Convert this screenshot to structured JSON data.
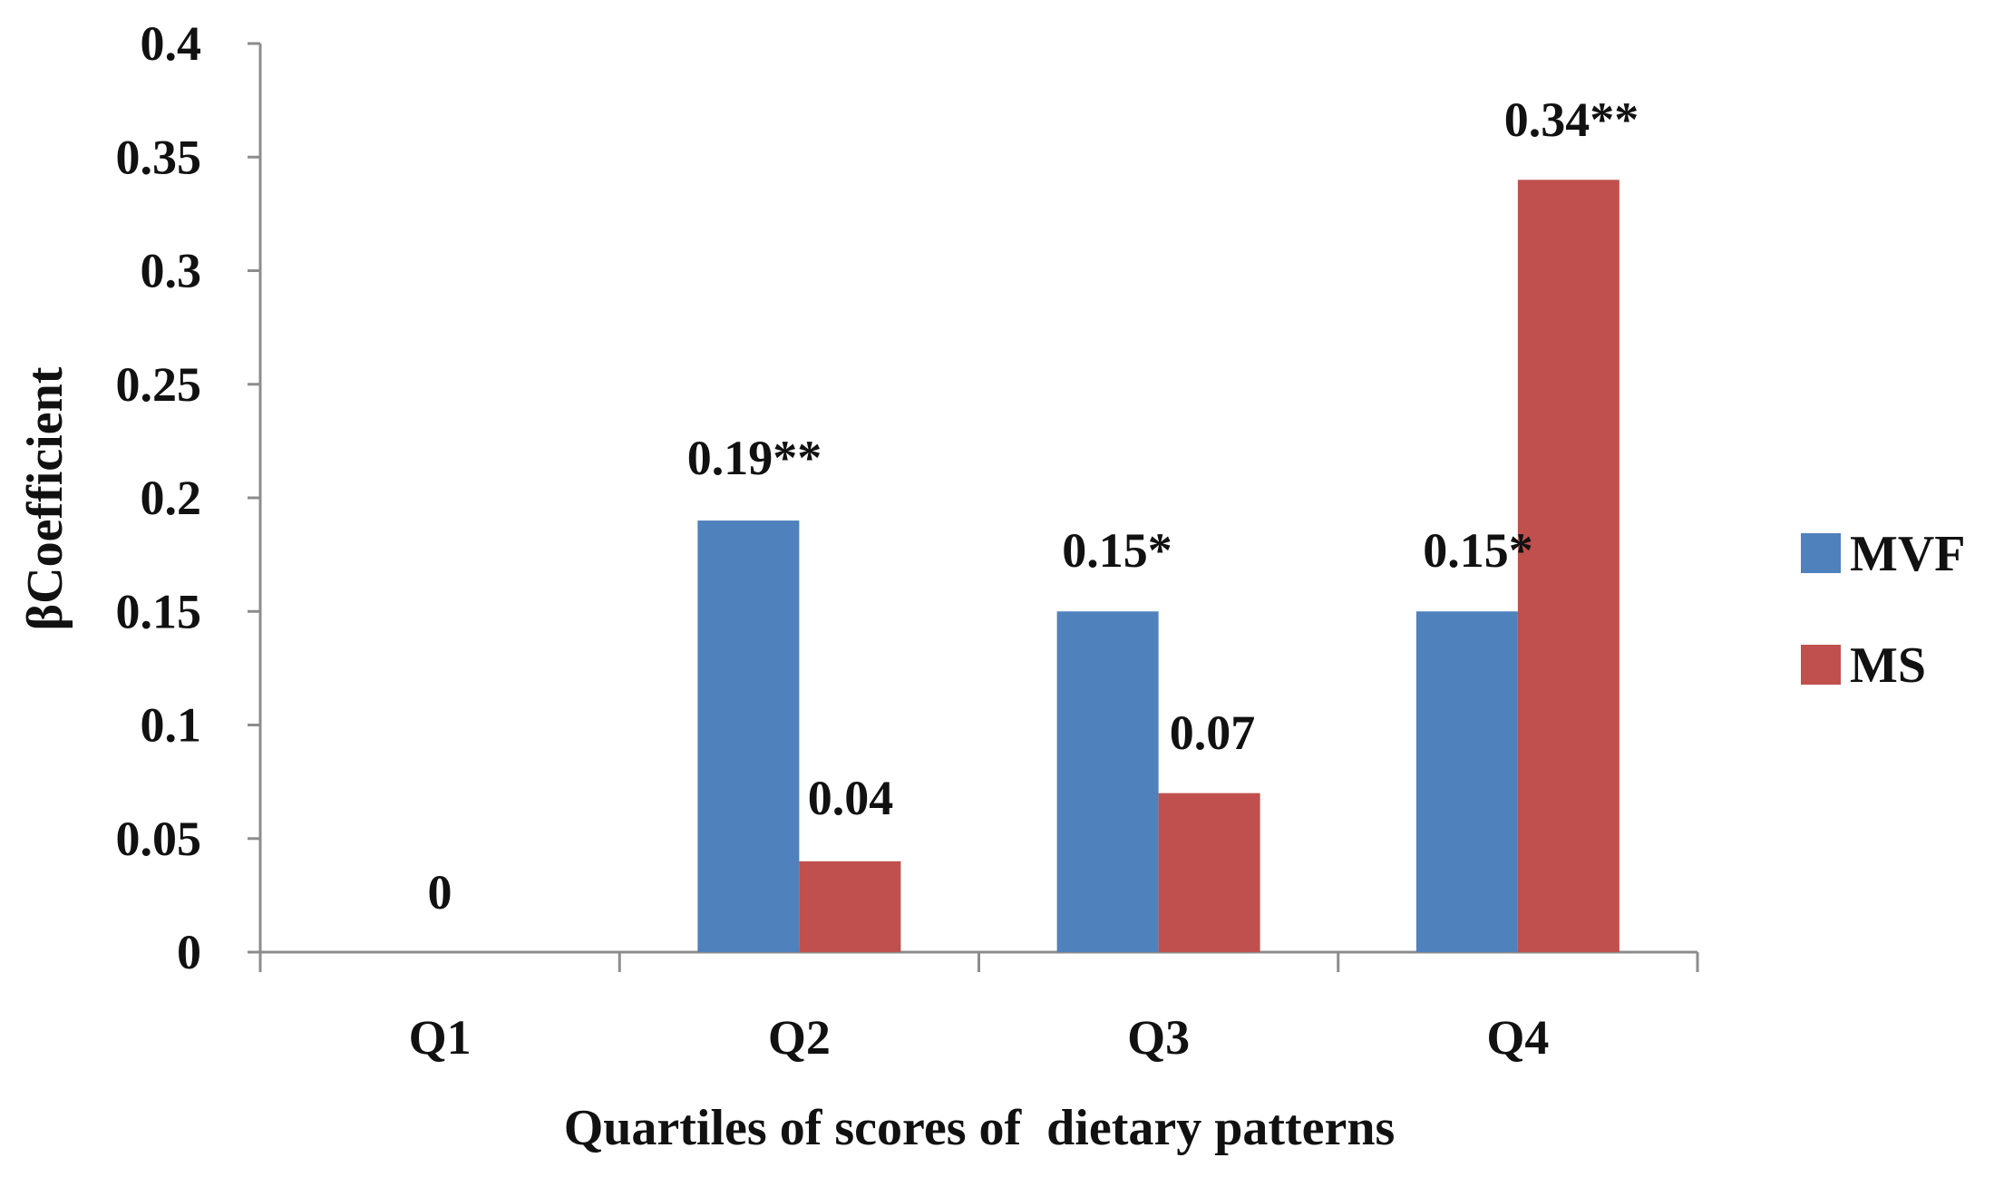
{
  "chart_data": {
    "type": "bar",
    "categories": [
      "Q1",
      "Q2",
      "Q3",
      "Q4"
    ],
    "series": [
      {
        "name": "MVF",
        "color": "#4F81BD",
        "values": [
          0,
          0.19,
          0.15,
          0.15
        ],
        "labels": [
          "0",
          "0.19**",
          "0.15*",
          "0.15*"
        ]
      },
      {
        "name": "MS",
        "color": "#C0504D",
        "values": [
          0,
          0.04,
          0.07,
          0.34
        ],
        "labels": [
          "",
          "0.04",
          "0.07",
          "0.34**"
        ]
      }
    ],
    "y_ticks": [
      "0",
      "0.05",
      "0.1",
      "0.15",
      "0.2",
      "0.25",
      "0.3",
      "0.35",
      "0.4"
    ],
    "ylim": [
      0,
      0.4
    ],
    "ylabel": "βCoefficient",
    "xlabel": "Quartiles of scores of  dietary patterns",
    "legend_position": "right",
    "grid": false
  }
}
